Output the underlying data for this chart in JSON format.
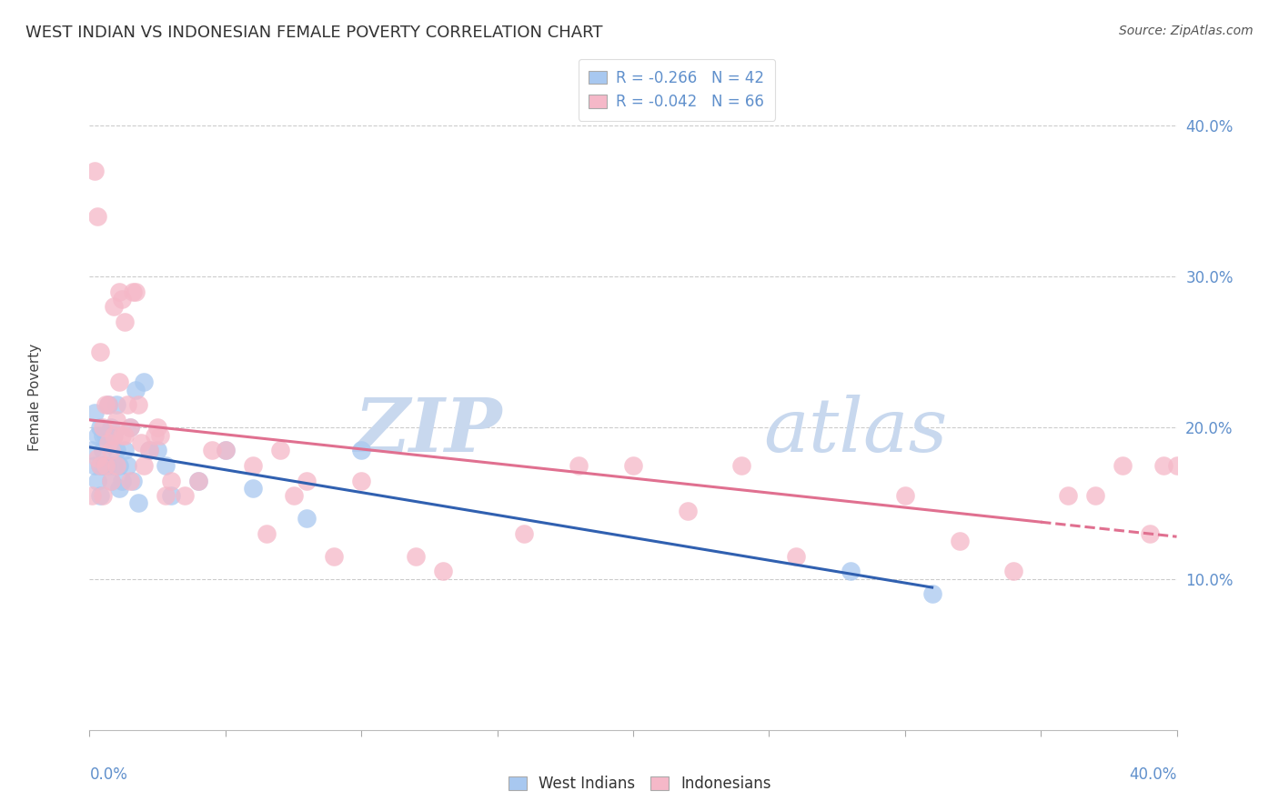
{
  "title": "WEST INDIAN VS INDONESIAN FEMALE POVERTY CORRELATION CHART",
  "source": "Source: ZipAtlas.com",
  "ylabel": "Female Poverty",
  "west_indian_R": -0.266,
  "west_indian_N": 42,
  "indonesian_R": -0.042,
  "indonesian_N": 66,
  "west_indian_color": "#a8c8f0",
  "indonesian_color": "#f5b8c8",
  "west_indian_line_color": "#3060b0",
  "indonesian_line_color": "#e07090",
  "background_color": "#ffffff",
  "watermark_color": "#dce8f5",
  "right_axis_color": "#6090cc",
  "xlim": [
    0.0,
    0.4
  ],
  "ylim": [
    0.0,
    0.44
  ],
  "west_indian_x": [
    0.001,
    0.002,
    0.002,
    0.003,
    0.003,
    0.004,
    0.004,
    0.004,
    0.005,
    0.005,
    0.005,
    0.006,
    0.006,
    0.007,
    0.007,
    0.008,
    0.008,
    0.009,
    0.009,
    0.01,
    0.01,
    0.011,
    0.011,
    0.012,
    0.013,
    0.014,
    0.015,
    0.016,
    0.017,
    0.018,
    0.02,
    0.022,
    0.025,
    0.028,
    0.03,
    0.04,
    0.05,
    0.06,
    0.08,
    0.1,
    0.28,
    0.31
  ],
  "west_indian_y": [
    0.185,
    0.175,
    0.21,
    0.195,
    0.165,
    0.2,
    0.175,
    0.155,
    0.185,
    0.175,
    0.195,
    0.195,
    0.175,
    0.215,
    0.175,
    0.2,
    0.165,
    0.175,
    0.195,
    0.215,
    0.185,
    0.16,
    0.175,
    0.165,
    0.185,
    0.175,
    0.2,
    0.165,
    0.225,
    0.15,
    0.23,
    0.185,
    0.185,
    0.175,
    0.155,
    0.165,
    0.185,
    0.16,
    0.14,
    0.185,
    0.105,
    0.09
  ],
  "indonesian_x": [
    0.001,
    0.002,
    0.003,
    0.003,
    0.004,
    0.004,
    0.005,
    0.005,
    0.006,
    0.006,
    0.007,
    0.007,
    0.008,
    0.008,
    0.009,
    0.009,
    0.01,
    0.01,
    0.011,
    0.011,
    0.012,
    0.012,
    0.013,
    0.013,
    0.014,
    0.015,
    0.015,
    0.016,
    0.017,
    0.018,
    0.019,
    0.02,
    0.022,
    0.024,
    0.025,
    0.026,
    0.028,
    0.03,
    0.035,
    0.04,
    0.045,
    0.05,
    0.06,
    0.065,
    0.07,
    0.075,
    0.08,
    0.09,
    0.1,
    0.12,
    0.13,
    0.16,
    0.18,
    0.2,
    0.22,
    0.24,
    0.26,
    0.3,
    0.32,
    0.34,
    0.36,
    0.37,
    0.38,
    0.39,
    0.395,
    0.4
  ],
  "indonesian_y": [
    0.155,
    0.37,
    0.18,
    0.34,
    0.175,
    0.25,
    0.2,
    0.155,
    0.215,
    0.175,
    0.19,
    0.215,
    0.165,
    0.185,
    0.195,
    0.28,
    0.175,
    0.205,
    0.23,
    0.29,
    0.285,
    0.195,
    0.27,
    0.195,
    0.215,
    0.2,
    0.165,
    0.29,
    0.29,
    0.215,
    0.19,
    0.175,
    0.185,
    0.195,
    0.2,
    0.195,
    0.155,
    0.165,
    0.155,
    0.165,
    0.185,
    0.185,
    0.175,
    0.13,
    0.185,
    0.155,
    0.165,
    0.115,
    0.165,
    0.115,
    0.105,
    0.13,
    0.175,
    0.175,
    0.145,
    0.175,
    0.115,
    0.155,
    0.125,
    0.105,
    0.155,
    0.155,
    0.175,
    0.13,
    0.175,
    0.175
  ]
}
